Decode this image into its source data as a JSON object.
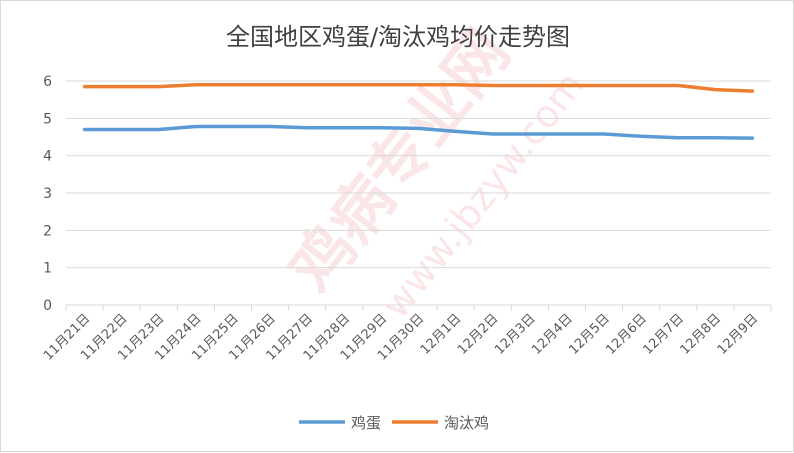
{
  "chart_data": {
    "type": "line",
    "title": "全国地区鸡蛋/淘汰鸡均价走势图",
    "categories": [
      "11月21日",
      "11月22日",
      "11月23日",
      "11月24日",
      "11月25日",
      "11月26日",
      "11月27日",
      "11月28日",
      "11月29日",
      "11月30日",
      "12月1日",
      "12月2日",
      "12月3日",
      "12月4日",
      "12月5日",
      "12月6日",
      "12月7日",
      "12月8日",
      "12月9日"
    ],
    "series": [
      {
        "name": "鸡蛋",
        "color": "#5b9bd5",
        "values": [
          4.7,
          4.7,
          4.7,
          4.78,
          4.78,
          4.78,
          4.75,
          4.75,
          4.75,
          4.73,
          4.65,
          4.58,
          4.58,
          4.58,
          4.58,
          4.52,
          4.48,
          4.48,
          4.47
        ]
      },
      {
        "name": "淘汰鸡",
        "color": "#ed7d31",
        "values": [
          5.85,
          5.85,
          5.85,
          5.9,
          5.9,
          5.9,
          5.9,
          5.9,
          5.9,
          5.9,
          5.9,
          5.88,
          5.88,
          5.88,
          5.88,
          5.88,
          5.88,
          5.77,
          5.73
        ]
      }
    ],
    "ylim": [
      0,
      6
    ],
    "yticks": [
      "0",
      "1",
      "2",
      "3",
      "4",
      "5",
      "6"
    ],
    "grid": true,
    "legend": "bottom"
  },
  "watermark": {
    "main": "鸡病专业网",
    "url": "www.jbzyw.com"
  }
}
